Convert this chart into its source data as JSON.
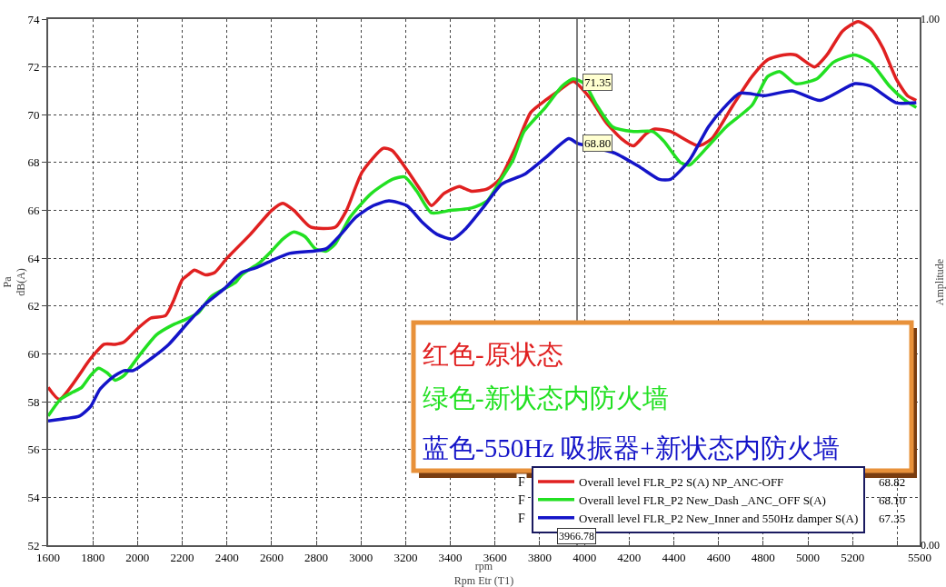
{
  "chart_data": {
    "type": "line",
    "xlabel": "rpm\nRpm Etr (T1)",
    "ylabel": "Pa\ndB(A)",
    "y2label": "Amplitude",
    "xlim": [
      1600,
      5500
    ],
    "xticks": [
      1600,
      1800,
      2000,
      2200,
      2400,
      2600,
      2800,
      3000,
      3200,
      3400,
      3600,
      3800,
      4000,
      4200,
      4400,
      4600,
      4800,
      5000,
      5200,
      {
        "value": 5400,
        "label": null
      },
      5500
    ],
    "ylim": [
      52,
      74
    ],
    "yticks": [
      52,
      54,
      56,
      58,
      60,
      62,
      64,
      66,
      68,
      70,
      72,
      74
    ],
    "y2lim": [
      0,
      1
    ],
    "y2ticks": [
      {
        "value": 0,
        "label": "0.00"
      },
      {
        "value": 1,
        "label": "1.00"
      }
    ],
    "grid": true,
    "legend": "bottom right",
    "marker": "none",
    "line_style": "solid",
    "series": [
      {
        "name": "Overall level FLR_P2 S(A) NP_ANC-OFF",
        "color": "#e02020",
        "x": [
          1600,
          1650,
          1790,
          1850,
          1900,
          1940,
          2005,
          2060,
          2125,
          2160,
          2200,
          2225,
          2255,
          2305,
          2345,
          2400,
          2505,
          2600,
          2650,
          2700,
          2775,
          2885,
          2935,
          3005,
          3100,
          3140,
          3205,
          3270,
          3315,
          3370,
          3410,
          3440,
          3495,
          3565,
          3620,
          3690,
          3760,
          3825,
          3885,
          3950,
          4025,
          4095,
          4165,
          4220,
          4275,
          4315,
          4385,
          4510,
          4570,
          4665,
          4750,
          4820,
          4890,
          4945,
          5030,
          5085,
          5155,
          5225,
          5280,
          5335,
          5395,
          5445,
          5485
        ],
        "values": [
          58.6,
          58.1,
          59.8,
          60.4,
          60.4,
          60.5,
          61.1,
          61.5,
          61.6,
          62.2,
          63.1,
          63.3,
          63.5,
          63.3,
          63.4,
          64.0,
          65.0,
          66.0,
          66.3,
          66.0,
          65.3,
          65.3,
          66.0,
          67.6,
          68.6,
          68.5,
          67.7,
          66.8,
          66.2,
          66.7,
          66.9,
          67.0,
          66.8,
          66.9,
          67.3,
          68.6,
          70.1,
          70.6,
          71.0,
          71.4,
          70.7,
          69.7,
          69.0,
          68.7,
          69.2,
          69.4,
          69.3,
          68.7,
          69.0,
          70.4,
          71.6,
          72.3,
          72.5,
          72.5,
          72.0,
          72.5,
          73.5,
          73.9,
          73.6,
          72.8,
          71.5,
          70.8,
          70.6
        ]
      },
      {
        "name": "Overall level FLR_P2 New_Dash _ANC_OFF S(A)",
        "color": "#22e022",
        "x": [
          1600,
          1655,
          1710,
          1750,
          1790,
          1825,
          1865,
          1900,
          1940,
          2005,
          2085,
          2155,
          2205,
          2270,
          2330,
          2440,
          2465,
          2545,
          2600,
          2650,
          2700,
          2750,
          2795,
          2845,
          2885,
          2950,
          3045,
          3140,
          3195,
          3250,
          3315,
          3400,
          3495,
          3565,
          3620,
          3680,
          3730,
          3825,
          3900,
          3950,
          4000,
          4055,
          4125,
          4220,
          4305,
          4355,
          4430,
          4470,
          4555,
          4635,
          4750,
          4820,
          4875,
          4945,
          5040,
          5115,
          5210,
          5280,
          5365,
          5435,
          5485
        ],
        "values": [
          57.4,
          58.1,
          58.4,
          58.6,
          59.1,
          59.4,
          59.2,
          58.9,
          59.1,
          59.9,
          60.8,
          61.2,
          61.4,
          61.7,
          62.4,
          63.0,
          63.3,
          63.8,
          64.3,
          64.8,
          65.1,
          64.9,
          64.4,
          64.3,
          64.6,
          65.7,
          66.7,
          67.3,
          67.4,
          66.8,
          65.9,
          66.0,
          66.1,
          66.4,
          67.2,
          68.1,
          69.3,
          70.3,
          71.2,
          71.5,
          71.3,
          70.4,
          69.5,
          69.3,
          69.3,
          68.9,
          68.0,
          67.9,
          68.7,
          69.5,
          70.4,
          71.6,
          71.8,
          71.3,
          71.5,
          72.2,
          72.5,
          72.2,
          71.2,
          70.6,
          70.3
        ]
      },
      {
        "name": "Overall level FLR_P2 New_Inner and 550Hz damper S(A)",
        "color": "#1414c8",
        "x": [
          1600,
          1680,
          1740,
          1790,
          1830,
          1885,
          1940,
          1980,
          2060,
          2140,
          2225,
          2305,
          2385,
          2465,
          2530,
          2600,
          2680,
          2790,
          2845,
          2910,
          2975,
          3055,
          3125,
          3205,
          3275,
          3340,
          3410,
          3465,
          3545,
          3630,
          3730,
          3825,
          3930,
          3970,
          4135,
          4250,
          4335,
          4385,
          4470,
          4555,
          4625,
          4695,
          4805,
          4930,
          5055,
          5210,
          5280,
          5395,
          5485
        ],
        "values": [
          57.2,
          57.3,
          57.4,
          57.8,
          58.5,
          59.0,
          59.3,
          59.3,
          59.8,
          60.4,
          61.3,
          62.1,
          62.7,
          63.4,
          63.6,
          63.9,
          64.2,
          64.3,
          64.4,
          65.0,
          65.7,
          66.2,
          66.4,
          66.2,
          65.5,
          65.0,
          64.8,
          65.2,
          66.1,
          67.1,
          67.5,
          68.2,
          69.0,
          68.8,
          68.4,
          67.8,
          67.3,
          67.3,
          68.1,
          69.5,
          70.3,
          70.9,
          70.8,
          71.0,
          70.6,
          71.3,
          71.2,
          70.5,
          70.5
        ]
      }
    ],
    "ref_lines": [
      {
        "axis": "x",
        "value": 3966.78,
        "label": "3966.78",
        "color": "#555555"
      }
    ],
    "annotations": [
      "红色-原状态",
      "绿色-新状态内防火墙",
      "蓝色-550Hz 吸振器+新状态内防火墙",
      "68.82",
      "68.10",
      "67.35",
      "F",
      "F",
      "F",
      {
        "text": "71.35",
        "x": 3966.78,
        "y": 71.35
      },
      {
        "text": "68.80",
        "x": 3966.78,
        "y": 68.8
      }
    ]
  }
}
